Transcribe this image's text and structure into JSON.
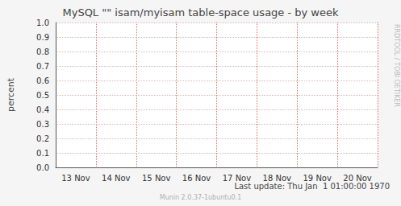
{
  "chart_data": {
    "type": "line",
    "title": "MySQL \"\" isam/myisam table-space usage - by week",
    "y_label": "percent",
    "categories": [
      "13 Nov",
      "14 Nov",
      "15 Nov",
      "16 Nov",
      "17 Nov",
      "18 Nov",
      "19 Nov",
      "20 Nov"
    ],
    "series": [],
    "ylim": [
      0,
      1
    ],
    "yticks": [
      {
        "value": 0,
        "label": "0.0"
      },
      0.1,
      0.2,
      0.3,
      0.4,
      0.5,
      0.6,
      0.7,
      0.8,
      0.9,
      {
        "value": 1,
        "label": "1.0"
      }
    ],
    "grid": true,
    "annotations": [
      "RRDTOOL / TOBI OETIKER",
      "Last update: Thu Jan  1 01:00:00 1970",
      "Munin 2.0.37-1ubuntu0.1"
    ]
  }
}
